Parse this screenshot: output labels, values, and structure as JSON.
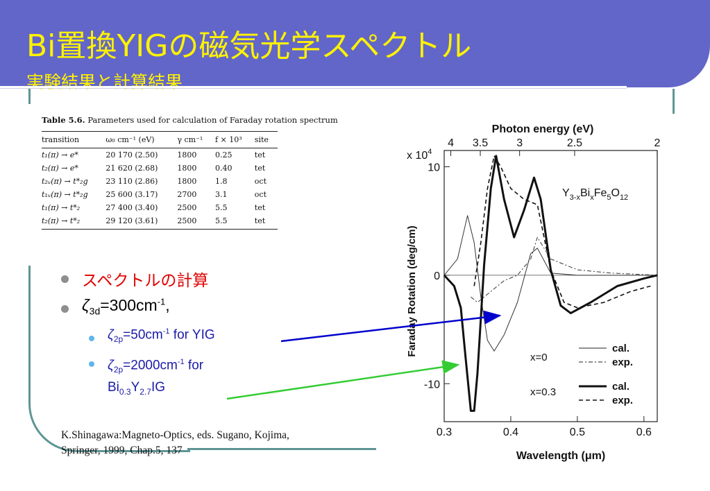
{
  "slide": {
    "title": "Bi置換YIGの磁気光学スペクトル",
    "subtitle": "実験結果と計算結果"
  },
  "table": {
    "caption_label": "Table 5.6.",
    "caption_text": "Parameters used for calculation of Faraday rotation spectrum",
    "headers": [
      "transition",
      "ω₀ cm⁻¹ (eV)",
      "γ cm⁻¹",
      "f × 10³",
      "site"
    ],
    "rows": [
      [
        "t₁(π) → e*",
        "20 170 (2.50)",
        "1800",
        "0.25",
        "tet"
      ],
      [
        "t₂(π) → e*",
        "21 620 (2.68)",
        "1800",
        "0.40",
        "tet"
      ],
      [
        "t₂ᵤ(π) → t*₂g",
        "23 110 (2.86)",
        "1800",
        "1.8",
        "oct"
      ],
      [
        "t₁ᵤ(π) → t*₂g",
        "25 600 (3.17)",
        "2700",
        "3.1",
        "oct"
      ],
      [
        "t₁(π) → t*₂",
        "27 400 (3.40)",
        "2500",
        "5.5",
        "tet"
      ],
      [
        "t₂(π) → t*₂",
        "29 120 (3.61)",
        "2500",
        "5.5",
        "tet"
      ]
    ]
  },
  "bullets": {
    "item1": "スペクトルの計算",
    "item2_sym": "ζ",
    "item2_sub": "3d",
    "item2_val": "=300cm",
    "item2_sup": "-1",
    "item2_tail": ",",
    "sub1_sym": "ζ",
    "sub1_sub": "2p",
    "sub1_val": "=50cm",
    "sub1_sup": "-1",
    "sub1_tail": " for YIG",
    "sub2_sym": "ζ",
    "sub2_sub": "2p",
    "sub2_val": "=2000cm",
    "sub2_sup": "-1",
    "sub2_tail": " for",
    "sub2_line2_a": "Bi",
    "sub2_line2_b": "0.3",
    "sub2_line2_c": "Y",
    "sub2_line2_d": "2.7",
    "sub2_line2_e": "IG"
  },
  "reference": {
    "line1": "K.Shinagawa:Magneto-Optics, eds. Sugano, Kojima,",
    "line2": "Springer, 1999, Chap.5, 137"
  },
  "colors": {
    "title_band": "#6266C8",
    "title_text": "#FFF200",
    "frame": "#5E9595",
    "bullet1_text": "#E00000",
    "sub_bullet_text": "#1a1aa8",
    "arrow_blue": "#0000CC",
    "arrow_green": "#33CC33"
  },
  "chart_data": {
    "type": "line",
    "top_axis_label": "Photon energy (eV)",
    "top_ticks": [
      "4",
      "3.5",
      "3",
      "2.5",
      "2"
    ],
    "x_label": "Wavelength (μm)",
    "x_ticks": [
      "0.3",
      "0.4",
      "0.5",
      "0.6"
    ],
    "xlim": [
      0.3,
      0.62
    ],
    "y_label": "Faraday Rotation (deg/cm)",
    "y_multiplier": "x 10",
    "y_multiplier_exp": "4",
    "y_ticks": [
      "10",
      "0",
      "-10"
    ],
    "ylim": [
      -13.5,
      11.5
    ],
    "annotation_formula": [
      "Y",
      "3-x",
      "Bi",
      "x",
      "Fe",
      "5",
      "O",
      "12"
    ],
    "legend": {
      "x0_label": "x=0",
      "x03_label": "x=0.3",
      "cal": "cal.",
      "exp": "exp."
    },
    "series": [
      {
        "name": "x=0 cal.",
        "style": "thin-solid",
        "x": [
          0.3,
          0.32,
          0.335,
          0.345,
          0.355,
          0.365,
          0.375,
          0.39,
          0.41,
          0.43,
          0.44,
          0.46,
          0.5,
          0.55,
          0.62
        ],
        "y": [
          0,
          1.5,
          5.5,
          3.0,
          -2.0,
          -6.0,
          -7.0,
          -5.5,
          -2.5,
          2.0,
          2.5,
          0.2,
          0.0,
          0.0,
          0.0
        ]
      },
      {
        "name": "x=0 exp.",
        "style": "thin-dashdot",
        "x": [
          0.34,
          0.35,
          0.37,
          0.39,
          0.41,
          0.43,
          0.44,
          0.46,
          0.5,
          0.55,
          0.62
        ],
        "y": [
          -2.0,
          -2.5,
          -1.5,
          -0.5,
          0.0,
          1.5,
          3.5,
          1.5,
          0.5,
          0.2,
          0.0
        ]
      },
      {
        "name": "x=0.3 cal.",
        "style": "thick-solid",
        "x": [
          0.3,
          0.315,
          0.325,
          0.332,
          0.34,
          0.345,
          0.35,
          0.36,
          0.37,
          0.378,
          0.39,
          0.405,
          0.42,
          0.435,
          0.445,
          0.46,
          0.475,
          0.49,
          0.52,
          0.56,
          0.6,
          0.62
        ],
        "y": [
          0,
          -1.0,
          -3.0,
          -7.5,
          -12.5,
          -12.5,
          -9.0,
          1.0,
          8.0,
          11.0,
          7.0,
          3.5,
          6.0,
          9.0,
          7.0,
          0.5,
          -2.8,
          -3.5,
          -2.5,
          -1.0,
          -0.3,
          0.0
        ]
      },
      {
        "name": "x=0.3 exp.",
        "style": "thick-dashed",
        "x": [
          0.345,
          0.355,
          0.365,
          0.375,
          0.385,
          0.4,
          0.42,
          0.44,
          0.46,
          0.48,
          0.5,
          0.54,
          0.58,
          0.61
        ],
        "y": [
          -1.0,
          3.0,
          8.0,
          11.0,
          10.0,
          8.0,
          7.0,
          6.5,
          0.5,
          -2.5,
          -3.0,
          -2.5,
          -1.5,
          -1.0
        ]
      }
    ]
  }
}
